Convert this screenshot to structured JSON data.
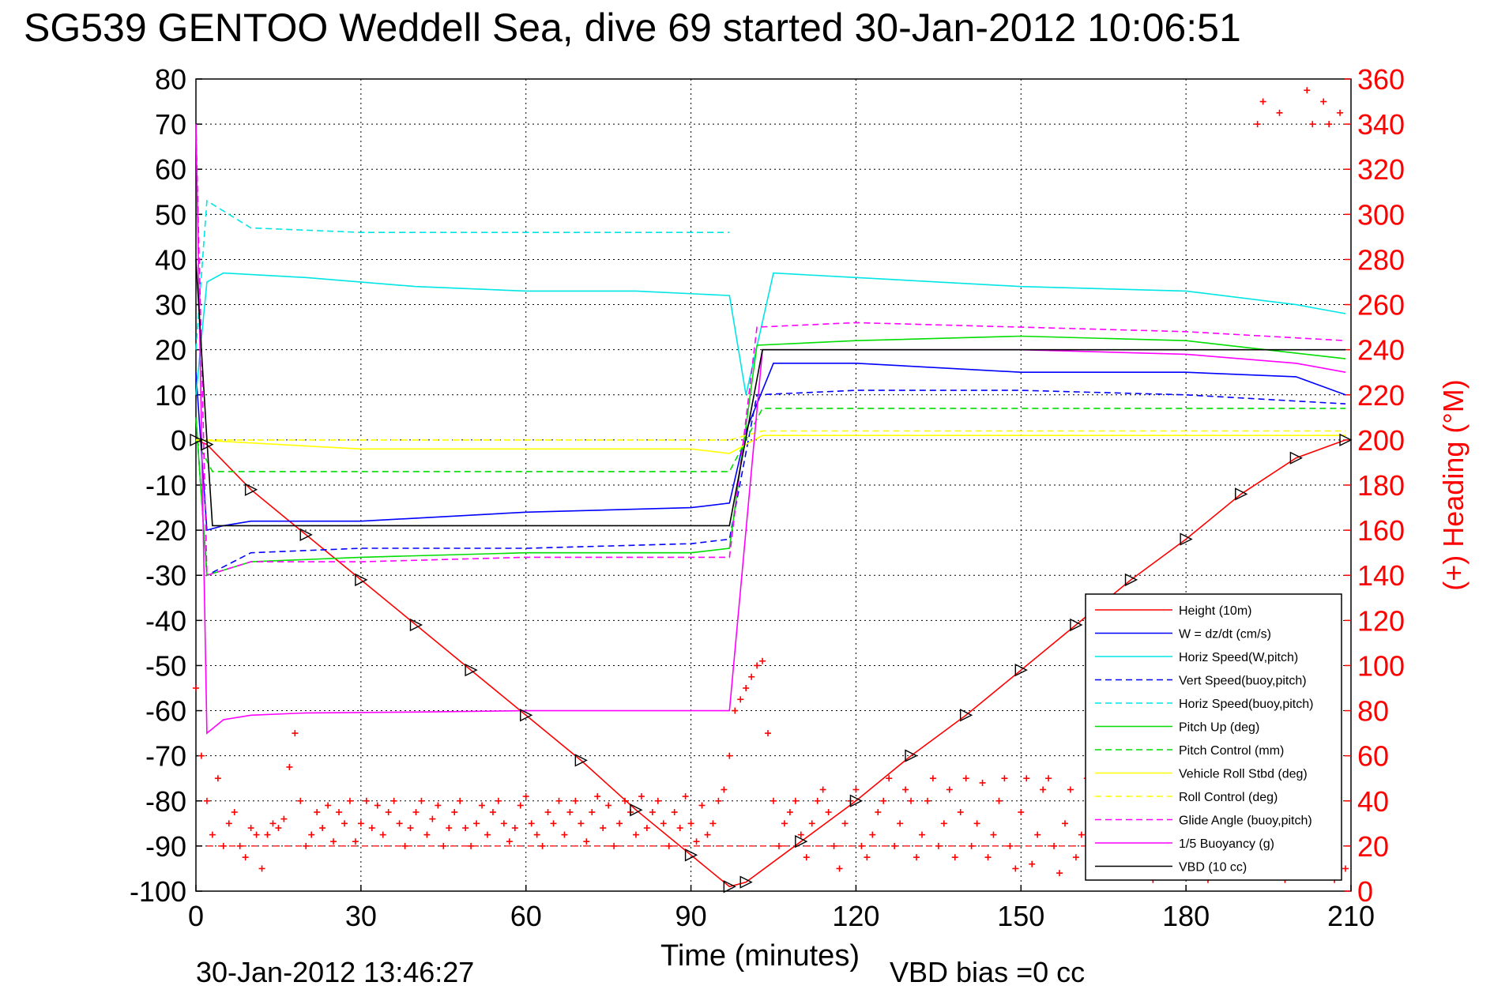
{
  "title": "SG539 GENTOO Weddell Sea, dive 69 started 30-Jan-2012 10:06:51",
  "footer_left": "30-Jan-2012 13:46:27",
  "footer_right": "VBD bias =0 cc",
  "chart_data": {
    "type": "line",
    "title": "SG539 GENTOO Weddell Sea, dive 69 started 30-Jan-2012 10:06:51",
    "xlabel": "Time (minutes)",
    "ylabel": "",
    "ylabel_right": "(+) Heading (°M)",
    "xlim": [
      0,
      210
    ],
    "ylim": [
      -100,
      80
    ],
    "ylim_right": [
      0,
      360
    ],
    "x_ticks": [
      "0",
      "30",
      "60",
      "90",
      "120",
      "150",
      "180",
      "210"
    ],
    "y_ticks": [
      "80",
      "70",
      "60",
      "50",
      "40",
      "30",
      "20",
      "10",
      "0",
      "-10",
      "-20",
      "-30",
      "-40",
      "-50",
      "-60",
      "-70",
      "-80",
      "-90",
      "-100"
    ],
    "y_ticks_right": [
      "360",
      "340",
      "320",
      "300",
      "280",
      "260",
      "240",
      "220",
      "200",
      "180",
      "160",
      "140",
      "120",
      "100",
      "80",
      "60",
      "40",
      "20",
      "0"
    ],
    "grid": true,
    "legend_position": "bottom-right",
    "series": [
      {
        "name": "Height (10m)",
        "color": "#ff0000",
        "style": "solid",
        "x": [
          0,
          2,
          10,
          20,
          30,
          40,
          50,
          60,
          70,
          80,
          90,
          97,
          100,
          110,
          120,
          130,
          140,
          150,
          160,
          170,
          180,
          190,
          200,
          209
        ],
        "y": [
          0,
          -1,
          -11,
          -21,
          -31,
          -41,
          -51,
          -61,
          -71,
          -82,
          -92,
          -99,
          -98,
          -89,
          -80,
          -70,
          -61,
          -51,
          -41,
          -31,
          -22,
          -12,
          -4,
          0
        ]
      },
      {
        "name": "W = dz/dt (cm/s)",
        "color": "#0000ff",
        "style": "solid",
        "x": [
          0,
          2,
          5,
          10,
          30,
          60,
          90,
          97,
          100,
          105,
          120,
          150,
          180,
          200,
          209
        ],
        "y": [
          15,
          -20,
          -19,
          -18,
          -18,
          -16,
          -15,
          -14,
          2,
          17,
          17,
          15,
          15,
          14,
          10
        ]
      },
      {
        "name": "Horiz Speed(W,pitch)",
        "color": "#00e5e5",
        "style": "solid",
        "x": [
          0,
          2,
          5,
          20,
          40,
          60,
          80,
          97,
          100,
          105,
          120,
          150,
          180,
          200,
          209
        ],
        "y": [
          10,
          35,
          37,
          36,
          34,
          33,
          33,
          32,
          10,
          37,
          36,
          34,
          33,
          30,
          28
        ]
      },
      {
        "name": "Vert Speed(buoy,pitch)",
        "color": "#0000ff",
        "style": "dashed",
        "x": [
          0,
          2,
          10,
          30,
          60,
          90,
          97,
          102,
          120,
          150,
          180,
          209
        ],
        "y": [
          5,
          -30,
          -25,
          -24,
          -24,
          -23,
          -22,
          10,
          11,
          11,
          10,
          8
        ]
      },
      {
        "name": "Horiz Speed(buoy,pitch)",
        "color": "#00e5e5",
        "style": "dashed",
        "x": [
          0,
          2,
          10,
          30,
          60,
          90,
          97
        ],
        "y": [
          20,
          53,
          47,
          46,
          46,
          46,
          46
        ]
      },
      {
        "name": "Pitch Up (deg)",
        "color": "#00dd00",
        "style": "solid",
        "x": [
          0,
          2,
          10,
          30,
          60,
          90,
          97,
          102,
          120,
          150,
          180,
          209
        ],
        "y": [
          5,
          -30,
          -27,
          -26,
          -25,
          -25,
          -24,
          21,
          22,
          23,
          22,
          18
        ]
      },
      {
        "name": "Pitch Control (mm)",
        "color": "#00dd00",
        "style": "dashed",
        "x": [
          0,
          3,
          10,
          30,
          60,
          90,
          97,
          103,
          120,
          150,
          180,
          209
        ],
        "y": [
          0,
          -7,
          -7,
          -7,
          -7,
          -7,
          -7,
          7,
          7,
          7,
          7,
          7
        ]
      },
      {
        "name": "Vehicle Roll Stbd (deg)",
        "color": "#ffff00",
        "style": "solid",
        "x": [
          0,
          30,
          60,
          90,
          97,
          103,
          120,
          150,
          180,
          209
        ],
        "y": [
          0,
          -2,
          -2,
          -2,
          -3,
          1,
          1,
          1,
          1,
          1
        ]
      },
      {
        "name": "Roll Control (deg)",
        "color": "#ffff00",
        "style": "dashed",
        "x": [
          0,
          30,
          60,
          90,
          97,
          103,
          120,
          150,
          180,
          209
        ],
        "y": [
          0,
          0,
          0,
          0,
          0,
          2,
          2,
          2,
          2,
          2
        ]
      },
      {
        "name": "Glide Angle (buoy,pitch)",
        "color": "#ff00ff",
        "style": "dashed",
        "x": [
          0,
          2,
          10,
          30,
          60,
          90,
          97,
          102,
          120,
          150,
          180,
          209
        ],
        "y": [
          70,
          -30,
          -27,
          -27,
          -26,
          -26,
          -26,
          25,
          26,
          25,
          24,
          22
        ]
      },
      {
        "name": "1/5 Buoyancy (g)",
        "color": "#ff00ff",
        "style": "solid",
        "x": [
          0,
          2,
          5,
          10,
          20,
          40,
          60,
          80,
          96,
          97,
          103,
          120,
          150,
          180,
          200,
          209
        ],
        "y": [
          70,
          -65,
          -62,
          -61,
          -60.5,
          -60.3,
          -60,
          -60,
          -60,
          -60,
          20,
          20,
          20,
          19,
          17,
          15
        ]
      },
      {
        "name": "VBD (10 cc)",
        "color": "#000000",
        "style": "solid",
        "x": [
          0,
          2,
          3,
          30,
          60,
          96,
          97,
          103,
          120,
          150,
          180,
          209
        ],
        "y": [
          40,
          0,
          -19,
          -19,
          -19,
          -19,
          -19,
          20,
          20,
          20,
          20,
          20
        ]
      }
    ],
    "heading_series": {
      "name": "(+) Heading",
      "color": "#ff0000",
      "marker": "+",
      "axis": "right",
      "x": [
        0,
        1,
        2,
        3,
        4,
        5,
        6,
        7,
        8,
        9,
        10,
        11,
        12,
        13,
        14,
        15,
        16,
        17,
        18,
        19,
        20,
        21,
        22,
        23,
        24,
        25,
        26,
        27,
        28,
        29,
        30,
        31,
        32,
        33,
        34,
        35,
        36,
        37,
        38,
        39,
        40,
        41,
        42,
        43,
        44,
        45,
        46,
        47,
        48,
        49,
        50,
        51,
        52,
        53,
        54,
        55,
        56,
        57,
        58,
        59,
        60,
        61,
        62,
        63,
        64,
        65,
        66,
        67,
        68,
        69,
        70,
        71,
        72,
        73,
        74,
        75,
        76,
        77,
        78,
        79,
        80,
        81,
        82,
        83,
        84,
        85,
        86,
        87,
        88,
        89,
        90,
        91,
        92,
        93,
        94,
        95,
        96,
        97,
        98,
        99,
        100,
        101,
        102,
        103,
        104,
        105,
        106,
        107,
        108,
        109,
        110,
        111,
        112,
        113,
        114,
        115,
        116,
        117,
        118,
        119,
        120,
        121,
        122,
        123,
        124,
        125,
        126,
        127,
        128,
        129,
        130,
        131,
        132,
        133,
        134,
        135,
        136,
        137,
        138,
        139,
        140,
        141,
        142,
        143,
        144,
        145,
        146,
        147,
        148,
        149,
        150,
        151,
        152,
        153,
        154,
        155,
        156,
        157,
        158,
        159,
        160,
        161,
        162,
        163,
        164,
        165,
        166,
        167,
        168,
        169,
        170,
        171,
        172,
        173,
        174,
        175,
        176,
        177,
        178,
        179,
        180,
        181,
        182,
        183,
        184,
        185,
        186,
        187,
        188,
        189,
        190,
        191,
        192,
        193,
        194,
        195,
        196,
        197,
        198,
        199,
        200,
        201,
        202,
        203,
        204,
        205,
        206,
        207,
        208,
        209
      ],
      "y": [
        90,
        60,
        40,
        25,
        50,
        20,
        30,
        35,
        20,
        15,
        28,
        25,
        10,
        25,
        30,
        28,
        32,
        55,
        70,
        40,
        20,
        25,
        35,
        28,
        38,
        22,
        35,
        30,
        40,
        22,
        30,
        40,
        28,
        38,
        25,
        35,
        40,
        30,
        20,
        28,
        35,
        40,
        25,
        32,
        38,
        20,
        28,
        35,
        40,
        28,
        20,
        30,
        38,
        25,
        35,
        40,
        30,
        22,
        28,
        38,
        42,
        30,
        25,
        20,
        35,
        30,
        40,
        25,
        35,
        40,
        30,
        22,
        35,
        42,
        28,
        38,
        20,
        30,
        40,
        35,
        25,
        42,
        28,
        35,
        40,
        30,
        20,
        35,
        28,
        42,
        30,
        22,
        38,
        25,
        30,
        40,
        45,
        60,
        80,
        85,
        90,
        95,
        100,
        102,
        70,
        40,
        20,
        30,
        35,
        40,
        25,
        15,
        30,
        40,
        45,
        35,
        20,
        10,
        30,
        40,
        45,
        20,
        15,
        25,
        35,
        40,
        50,
        20,
        30,
        45,
        40,
        15,
        25,
        40,
        50,
        20,
        30,
        45,
        15,
        35,
        50,
        20,
        30,
        48,
        15,
        25,
        40,
        50,
        20,
        10,
        35,
        50,
        12,
        25,
        45,
        50,
        20,
        8,
        30,
        45,
        15,
        25,
        50,
        10,
        30,
        48,
        20,
        15,
        40,
        50,
        10,
        25,
        45,
        15,
        5,
        30,
        50,
        20,
        35,
        45,
        10,
        30,
        48,
        20,
        5,
        40,
        35,
        10,
        30,
        45,
        20,
        8,
        25,
        340,
        350,
        20,
        15,
        345,
        5,
        10,
        30,
        25,
        355,
        340,
        10,
        350,
        340,
        5,
        345,
        10
      ]
    }
  },
  "legend": {
    "items": [
      {
        "label": "Height (10m)",
        "color": "#ff0000",
        "style": "solid"
      },
      {
        "label": "W = dz/dt (cm/s)",
        "color": "#0000ff",
        "style": "solid"
      },
      {
        "label": "Horiz Speed(W,pitch)",
        "color": "#00e5e5",
        "style": "solid"
      },
      {
        "label": "Vert Speed(buoy,pitch)",
        "color": "#0000ff",
        "style": "dashed"
      },
      {
        "label": "Horiz Speed(buoy,pitch)",
        "color": "#00e5e5",
        "style": "dashed"
      },
      {
        "label": "Pitch Up (deg)",
        "color": "#00dd00",
        "style": "solid"
      },
      {
        "label": "Pitch Control (mm)",
        "color": "#00dd00",
        "style": "dashed"
      },
      {
        "label": "Vehicle Roll Stbd (deg)",
        "color": "#ffff00",
        "style": "solid"
      },
      {
        "label": "Roll Control (deg)",
        "color": "#ffff00",
        "style": "dashed"
      },
      {
        "label": "Glide Angle (buoy,pitch)",
        "color": "#ff00ff",
        "style": "dashed"
      },
      {
        "label": "1/5 Buoyancy (g)",
        "color": "#ff00ff",
        "style": "solid"
      },
      {
        "label": "VBD (10 cc)",
        "color": "#000000",
        "style": "solid"
      }
    ]
  }
}
